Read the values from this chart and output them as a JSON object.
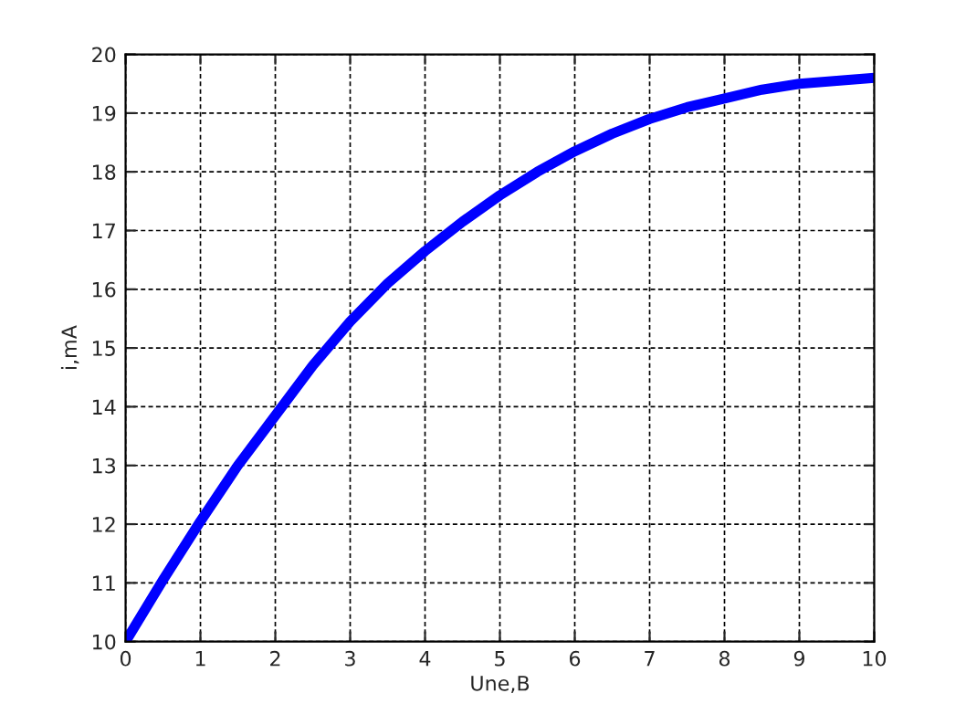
{
  "chart_data": {
    "type": "line",
    "xlabel": "Une,B",
    "ylabel": "i,mA",
    "x": [
      0,
      0.5,
      1,
      1.5,
      2,
      2.5,
      3,
      3.5,
      4,
      4.5,
      5,
      5.5,
      6,
      6.5,
      7,
      7.5,
      8,
      8.5,
      9,
      9.5,
      10
    ],
    "series": [
      {
        "color": "#0000ff",
        "values": [
          10.0,
          11.05,
          12.05,
          13.0,
          13.85,
          14.7,
          15.45,
          16.1,
          16.65,
          17.15,
          17.6,
          18.0,
          18.35,
          18.65,
          18.9,
          19.1,
          19.25,
          19.4,
          19.5,
          19.55,
          19.6
        ]
      }
    ],
    "xlim": [
      0,
      10
    ],
    "ylim": [
      10,
      20
    ],
    "xticks": [
      0,
      1,
      2,
      3,
      4,
      5,
      6,
      7,
      8,
      9,
      10
    ],
    "yticks": [
      10,
      11,
      12,
      13,
      14,
      15,
      16,
      17,
      18,
      19,
      20
    ],
    "grid": true,
    "line_style": "solid"
  }
}
